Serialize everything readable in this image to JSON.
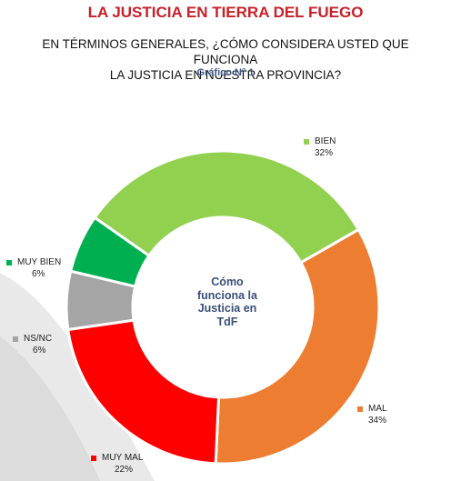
{
  "header": {
    "title": "LA JUSTICIA EN TIERRA DEL FUEGO",
    "question_line1": "EN TÉRMINOS GENERALES, ¿CÓMO CONSIDERA USTED QUE FUNCIONA",
    "question_line2": "LA JUSTICIA EN NUESTRA PROVINCIA?",
    "chart_caption": "Gráfico N° 1"
  },
  "center_label": [
    "Cómo",
    "funciona la",
    "Justicia en",
    "TdF"
  ],
  "chart_data": {
    "type": "pie",
    "title": "Cómo funciona la Justicia en TdF",
    "slices": [
      {
        "label": "BIEN",
        "value": 32,
        "value_label": "32%",
        "color": "#92d050"
      },
      {
        "label": "MAL",
        "value": 34,
        "value_label": "34%",
        "color": "#ed7d31"
      },
      {
        "label": "MUY MAL",
        "value": 22,
        "value_label": "22%",
        "color": "#ff0000"
      },
      {
        "label": "NS/NC",
        "value": 6,
        "value_label": "6%",
        "color": "#a5a5a5"
      },
      {
        "label": "MUY BIEN",
        "value": 6,
        "value_label": "6%",
        "color": "#00b050"
      }
    ]
  }
}
